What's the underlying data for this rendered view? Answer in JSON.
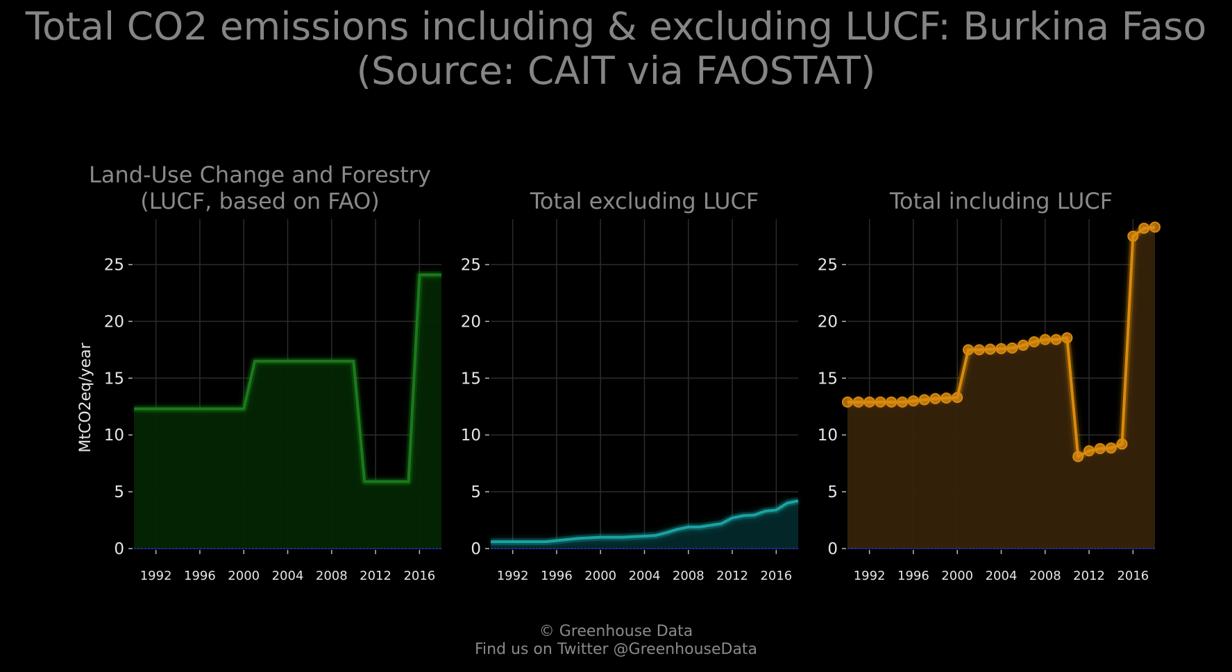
{
  "title_line1": "Total CO2 emissions including & excluding LUCF: Burkina Faso",
  "title_line2": "(Source: CAIT via FAOSTAT)",
  "footer_line1": "© Greenhouse Data",
  "footer_line2": "Find us on Twitter @GreenhouseData",
  "chart_data": [
    {
      "type": "area",
      "title_line1": "Land-Use Change and Forestry",
      "title_line2": "(LUCF, based on FAO)",
      "ylabel": "MtCO2eq/year",
      "color": "#1a7a1a",
      "fill": "#032503",
      "markers": false,
      "xlim": [
        1990,
        2018
      ],
      "ylim": [
        0,
        29
      ],
      "xticks": [
        1992,
        1996,
        2000,
        2004,
        2008,
        2012,
        2016
      ],
      "yticks": [
        0,
        5,
        10,
        15,
        20,
        25
      ],
      "grid": true,
      "x": [
        1990,
        1991,
        1992,
        1993,
        1994,
        1995,
        1996,
        1997,
        1998,
        1999,
        2000,
        2001,
        2002,
        2003,
        2004,
        2005,
        2006,
        2007,
        2008,
        2009,
        2010,
        2011,
        2012,
        2013,
        2014,
        2015,
        2016,
        2017,
        2018
      ],
      "values": [
        12.3,
        12.3,
        12.3,
        12.3,
        12.3,
        12.3,
        12.3,
        12.3,
        12.3,
        12.3,
        12.3,
        16.5,
        16.5,
        16.5,
        16.5,
        16.5,
        16.5,
        16.5,
        16.5,
        16.5,
        16.5,
        5.9,
        5.9,
        5.9,
        5.9,
        5.9,
        24.1,
        24.1,
        24.1
      ]
    },
    {
      "type": "area",
      "title_line1": "",
      "title_line2": "Total excluding LUCF",
      "ylabel": "",
      "color": "#1aa3a3",
      "fill": "#03292b",
      "markers": false,
      "xlim": [
        1990,
        2018
      ],
      "ylim": [
        0,
        29
      ],
      "xticks": [
        1992,
        1996,
        2000,
        2004,
        2008,
        2012,
        2016
      ],
      "yticks": [
        0,
        5,
        10,
        15,
        20,
        25
      ],
      "grid": true,
      "x": [
        1990,
        1991,
        1992,
        1993,
        1994,
        1995,
        1996,
        1997,
        1998,
        1999,
        2000,
        2001,
        2002,
        2003,
        2004,
        2005,
        2006,
        2007,
        2008,
        2009,
        2010,
        2011,
        2012,
        2013,
        2014,
        2015,
        2016,
        2017,
        2018
      ],
      "values": [
        0.6,
        0.6,
        0.6,
        0.6,
        0.6,
        0.6,
        0.7,
        0.8,
        0.9,
        0.95,
        1.0,
        1.0,
        1.0,
        1.05,
        1.1,
        1.15,
        1.4,
        1.7,
        1.9,
        1.9,
        2.05,
        2.2,
        2.7,
        2.9,
        2.95,
        3.3,
        3.4,
        4.0,
        4.2
      ]
    },
    {
      "type": "area",
      "title_line1": "",
      "title_line2": "Total including LUCF",
      "ylabel": "",
      "color": "#d98a0f",
      "fill": "#36220a",
      "markers": true,
      "xlim": [
        1990,
        2018
      ],
      "ylim": [
        0,
        29
      ],
      "xticks": [
        1992,
        1996,
        2000,
        2004,
        2008,
        2012,
        2016
      ],
      "yticks": [
        0,
        5,
        10,
        15,
        20,
        25
      ],
      "grid": true,
      "x": [
        1990,
        1991,
        1992,
        1993,
        1994,
        1995,
        1996,
        1997,
        1998,
        1999,
        2000,
        2001,
        2002,
        2003,
        2004,
        2005,
        2006,
        2007,
        2008,
        2009,
        2010,
        2011,
        2012,
        2013,
        2014,
        2015,
        2016,
        2017,
        2018
      ],
      "values": [
        12.9,
        12.9,
        12.9,
        12.9,
        12.9,
        12.9,
        13.0,
        13.1,
        13.2,
        13.25,
        13.3,
        17.5,
        17.5,
        17.55,
        17.6,
        17.65,
        17.9,
        18.2,
        18.4,
        18.4,
        18.55,
        8.1,
        8.6,
        8.8,
        8.85,
        9.2,
        27.5,
        28.2,
        28.3
      ]
    }
  ]
}
